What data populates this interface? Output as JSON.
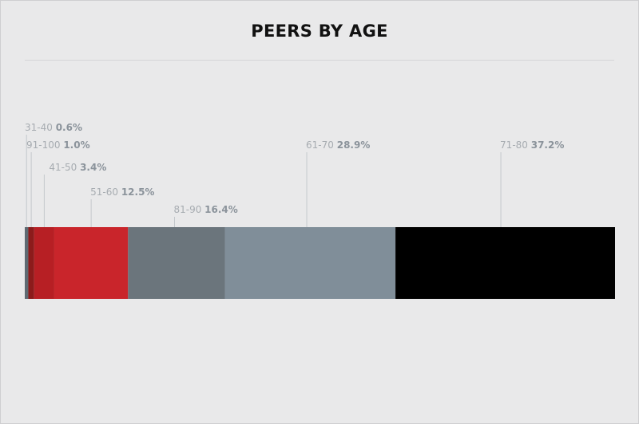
{
  "title": "PEERS BY AGE",
  "chart_data": {
    "type": "bar",
    "orientation": "stacked-horizontal",
    "title": "PEERS BY AGE",
    "xlabel": "",
    "ylabel": "",
    "unit": "%",
    "grid": false,
    "legend": "none",
    "segments": [
      {
        "label": "31-40",
        "value": 0.6,
        "display": "0.6%",
        "color": "#5e6a72"
      },
      {
        "label": "91-100",
        "value": 1.0,
        "display": "1.0%",
        "color": "#8c1b1b"
      },
      {
        "label": "41-50",
        "value": 3.4,
        "display": "3.4%",
        "color": "#b71f24"
      },
      {
        "label": "51-60",
        "value": 12.5,
        "display": "12.5%",
        "color": "#c9252b"
      },
      {
        "label": "81-90",
        "value": 16.4,
        "display": "16.4%",
        "color": "#6b757c"
      },
      {
        "label": "61-70",
        "value": 28.9,
        "display": "28.9%",
        "color": "#808e99"
      },
      {
        "label": "71-80",
        "value": 37.2,
        "display": "37.2%",
        "color": "#000000"
      }
    ]
  }
}
